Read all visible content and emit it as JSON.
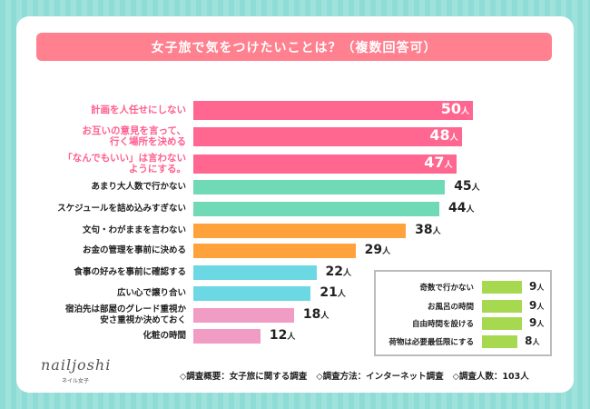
{
  "title": "女子旅で気をつけたいことは？（複数回答可）",
  "unit": "人",
  "colors": {
    "background": "#8fdcd6",
    "title_bar": "#ff808f",
    "highlight_text": "#ff5f8e"
  },
  "chart_data": {
    "type": "bar",
    "orientation": "horizontal",
    "xlim": [
      0,
      50
    ],
    "categories": [
      "計画を人任せにしない",
      "お互いの意見を言って、\n行く場所を決める",
      "「なんでもいい」は言わない\nようにする。",
      "あまり大人数で行かない",
      "スケジュールを詰め込みすぎない",
      "文句・わがままを言わない",
      "お金の管理を事前に決める",
      "食事の好みを事前に確認する",
      "広い心で譲り合い",
      "宿泊先は部屋のグレード重視か\n安さ重視か決めておく",
      "化粧の時間"
    ],
    "values": [
      50,
      48,
      47,
      45,
      44,
      38,
      29,
      22,
      21,
      18,
      12
    ],
    "bar_colors": [
      "#ff6690",
      "#ff6690",
      "#ff6690",
      "#70d9b5",
      "#70d9b5",
      "#ffa23c",
      "#ffa23c",
      "#6bd8e3",
      "#6bd8e3",
      "#f09cc4",
      "#f09cc4"
    ],
    "highlighted": [
      true,
      true,
      true,
      false,
      false,
      false,
      false,
      false,
      false,
      false,
      false
    ],
    "inset": {
      "categories": [
        "奇数で行かない",
        "お風呂の時間",
        "自由時間を設ける",
        "荷物は必要最低限にする"
      ],
      "values": [
        9,
        9,
        9,
        8
      ],
      "bar_color": "#a6d94f"
    }
  },
  "logo": {
    "name": "nailjoshi",
    "sub": "ネイル女子"
  },
  "footer": [
    "◇調査概要：女子旅に関する調査",
    "◇調査方法：インターネット調査",
    "◇調査人数：103人"
  ]
}
